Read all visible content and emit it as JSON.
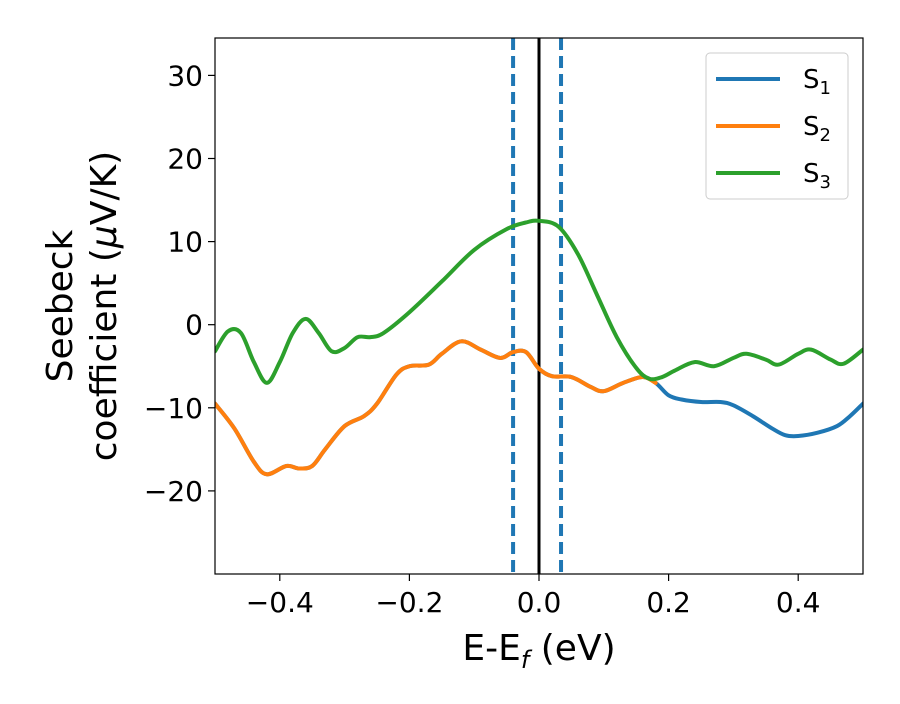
{
  "chart_data": {
    "type": "line",
    "xlabel": {
      "main": "E-E",
      "sub": "f",
      "unit": " (eV)"
    },
    "ylabel": {
      "line1": "Seebeck",
      "line2_prefix": "coefficient  (",
      "mu": "μ",
      "line2_suffix": "V/K)"
    },
    "xlim": [
      -0.5,
      0.5
    ],
    "ylim": [
      -30,
      34.5
    ],
    "xticks": [
      -0.4,
      -0.2,
      0.0,
      0.2,
      0.4
    ],
    "xtick_labels": [
      "−0.4",
      "−0.2",
      "0.0",
      "0.2",
      "0.4"
    ],
    "yticks": [
      -20,
      -10,
      0,
      10,
      20,
      30
    ],
    "ytick_labels": [
      "−20",
      "−10",
      "0",
      "10",
      "20",
      "30"
    ],
    "grid": false,
    "legend_position": "top-right",
    "legend": [
      {
        "main": "S",
        "sub": "1",
        "color": "#1f77b4"
      },
      {
        "main": "S",
        "sub": "2",
        "color": "#ff7f0e"
      },
      {
        "main": "S",
        "sub": "3",
        "color": "#2ca02c"
      }
    ],
    "vlines": [
      {
        "x": 0.0,
        "style": "solid",
        "color": "#000000"
      },
      {
        "x": -0.04,
        "style": "dashed",
        "color": "#1f77b4"
      },
      {
        "x": 0.034,
        "style": "dashed",
        "color": "#1f77b4"
      }
    ],
    "series": [
      {
        "name": "S1",
        "color": "#1f77b4",
        "x": [
          -0.5,
          -0.47,
          -0.44,
          -0.42,
          -0.39,
          -0.37,
          -0.35,
          -0.33,
          -0.3,
          -0.27,
          -0.25,
          -0.22,
          -0.2,
          -0.17,
          -0.15,
          -0.12,
          -0.09,
          -0.06,
          -0.04,
          -0.02,
          0.0,
          0.02,
          0.05,
          0.08,
          0.1,
          0.13,
          0.16,
          0.18,
          0.2,
          0.22,
          0.25,
          0.28,
          0.3,
          0.33,
          0.36,
          0.38,
          0.4,
          0.43,
          0.46,
          0.48,
          0.5
        ],
        "y": [
          -9.5,
          -12.5,
          -16.5,
          -18.0,
          -17.0,
          -17.3,
          -17.0,
          -15.0,
          -12.2,
          -11.0,
          -9.5,
          -6.0,
          -5.0,
          -4.8,
          -3.5,
          -2.0,
          -3.0,
          -4.0,
          -3.3,
          -3.3,
          -5.3,
          -6.2,
          -6.3,
          -7.5,
          -8.0,
          -7.0,
          -6.3,
          -7.0,
          -8.5,
          -9.0,
          -9.3,
          -9.3,
          -9.7,
          -11.0,
          -12.5,
          -13.3,
          -13.4,
          -13.0,
          -12.2,
          -11.0,
          -9.5
        ]
      },
      {
        "name": "S2",
        "color": "#ff7f0e",
        "x": [
          -0.5,
          -0.47,
          -0.44,
          -0.42,
          -0.39,
          -0.37,
          -0.35,
          -0.33,
          -0.3,
          -0.27,
          -0.25,
          -0.22,
          -0.2,
          -0.17,
          -0.15,
          -0.12,
          -0.09,
          -0.06,
          -0.04,
          -0.02,
          0.0,
          0.02,
          0.05,
          0.08,
          0.1,
          0.13,
          0.16,
          0.18
        ],
        "y": [
          -9.5,
          -12.5,
          -16.5,
          -18.0,
          -17.0,
          -17.3,
          -17.0,
          -15.0,
          -12.2,
          -11.0,
          -9.5,
          -6.0,
          -5.0,
          -4.8,
          -3.5,
          -2.0,
          -3.0,
          -4.0,
          -3.3,
          -3.3,
          -5.3,
          -6.2,
          -6.3,
          -7.5,
          -8.0,
          -7.0,
          -6.3,
          -7.0
        ]
      },
      {
        "name": "S3",
        "color": "#2ca02c",
        "x": [
          -0.5,
          -0.48,
          -0.46,
          -0.44,
          -0.42,
          -0.4,
          -0.38,
          -0.36,
          -0.34,
          -0.32,
          -0.3,
          -0.28,
          -0.26,
          -0.24,
          -0.2,
          -0.15,
          -0.1,
          -0.05,
          -0.02,
          0.0,
          0.03,
          0.06,
          0.09,
          0.12,
          0.15,
          0.17,
          0.19,
          0.21,
          0.24,
          0.27,
          0.3,
          0.32,
          0.35,
          0.37,
          0.4,
          0.42,
          0.45,
          0.47,
          0.5
        ],
        "y": [
          -3.2,
          -0.8,
          -1.0,
          -4.5,
          -7.0,
          -4.5,
          -1.0,
          0.7,
          -1.0,
          -3.2,
          -2.8,
          -1.5,
          -1.5,
          -1.0,
          1.5,
          5.2,
          9.0,
          11.5,
          12.3,
          12.5,
          11.8,
          8.5,
          3.5,
          -1.5,
          -5.2,
          -6.5,
          -6.3,
          -5.5,
          -4.5,
          -5.0,
          -4.0,
          -3.5,
          -4.2,
          -4.8,
          -3.5,
          -3.0,
          -4.2,
          -4.7,
          -3.0
        ]
      }
    ]
  }
}
